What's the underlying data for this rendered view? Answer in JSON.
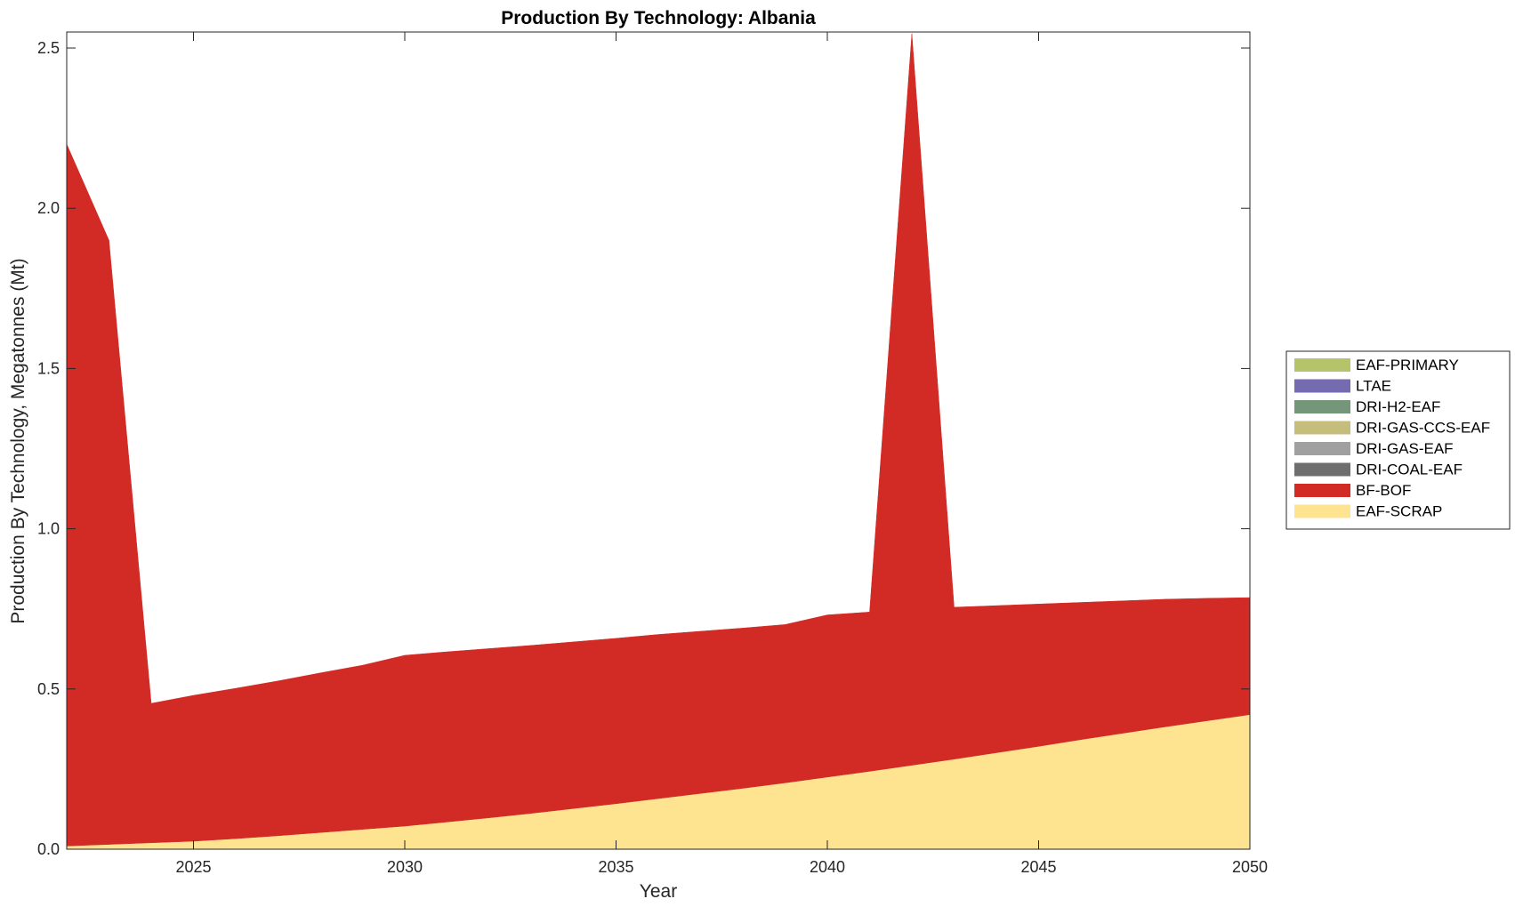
{
  "chart_data": {
    "type": "area",
    "stacked": true,
    "title": "Production By Technology: Albania",
    "xlabel": "Year",
    "ylabel": "Production By Technology, Megatonnes (Mt)",
    "xlim": [
      2022,
      2050
    ],
    "ylim": [
      0,
      2.55
    ],
    "xticks": [
      2025,
      2030,
      2035,
      2040,
      2045,
      2050
    ],
    "yticks": [
      0,
      0.5,
      1,
      1.5,
      2,
      2.5
    ],
    "ytick_labels": [
      "0.0",
      "0.5",
      "1.0",
      "1.5",
      "2.0",
      "2.5"
    ],
    "grid": false,
    "legend_position": "right",
    "x": [
      2022,
      2023,
      2024,
      2025,
      2026,
      2027,
      2028,
      2029,
      2030,
      2031,
      2032,
      2033,
      2034,
      2035,
      2036,
      2037,
      2038,
      2039,
      2040,
      2041,
      2042,
      2043,
      2044,
      2045,
      2046,
      2047,
      2048,
      2049,
      2050
    ],
    "series": [
      {
        "name": "EAF-SCRAP",
        "color": "#fee391",
        "values": [
          0.01,
          0.015,
          0.02,
          0.025,
          0.033,
          0.042,
          0.052,
          0.062,
          0.072,
          0.085,
          0.098,
          0.112,
          0.127,
          0.142,
          0.158,
          0.174,
          0.19,
          0.207,
          0.225,
          0.243,
          0.262,
          0.281,
          0.301,
          0.321,
          0.342,
          0.362,
          0.382,
          0.401,
          0.42
        ]
      },
      {
        "name": "BF-BOF",
        "color": "#d22b25",
        "values": [
          2.19,
          1.885,
          0.435,
          0.455,
          0.469,
          0.483,
          0.498,
          0.512,
          0.533,
          0.531,
          0.528,
          0.524,
          0.52,
          0.516,
          0.512,
          0.506,
          0.5,
          0.494,
          0.506,
          0.497,
          2.283,
          0.474,
          0.459,
          0.444,
          0.428,
          0.413,
          0.398,
          0.382,
          0.365
        ]
      },
      {
        "name": "DRI-COAL-EAF",
        "color": "#6e6e6e",
        "values": [
          0,
          0,
          0,
          0,
          0,
          0,
          0,
          0,
          0,
          0,
          0,
          0,
          0,
          0,
          0,
          0,
          0,
          0,
          0,
          0,
          0,
          0,
          0,
          0,
          0,
          0,
          0,
          0,
          0
        ]
      },
      {
        "name": "DRI-GAS-EAF",
        "color": "#a0a0a0",
        "values": [
          0,
          0,
          0,
          0,
          0,
          0,
          0,
          0,
          0,
          0,
          0,
          0,
          0,
          0,
          0,
          0,
          0,
          0,
          0,
          0,
          0,
          0,
          0,
          0,
          0,
          0,
          0,
          0,
          0
        ]
      },
      {
        "name": "DRI-GAS-CCS-EAF",
        "color": "#c5bd7c",
        "values": [
          0,
          0,
          0,
          0,
          0,
          0,
          0,
          0,
          0,
          0,
          0,
          0,
          0,
          0,
          0,
          0,
          0,
          0,
          0,
          0,
          0,
          0,
          0,
          0,
          0,
          0,
          0,
          0,
          0
        ]
      },
      {
        "name": "DRI-H2-EAF",
        "color": "#74977a",
        "values": [
          0,
          0,
          0,
          0,
          0,
          0,
          0,
          0,
          0,
          0,
          0,
          0,
          0,
          0,
          0,
          0,
          0,
          0,
          0,
          0,
          0,
          0,
          0,
          0,
          0,
          0,
          0,
          0,
          0
        ]
      },
      {
        "name": "LTAE",
        "color": "#756bb1",
        "values": [
          0,
          0,
          0,
          0,
          0,
          0,
          0,
          0,
          0,
          0,
          0,
          0,
          0,
          0,
          0,
          0,
          0,
          0,
          0,
          0,
          0,
          0,
          0,
          0,
          0,
          0,
          0,
          0,
          0
        ]
      },
      {
        "name": "EAF-PRIMARY",
        "color": "#b5c46a",
        "values": [
          0,
          0,
          0,
          0,
          0,
          0,
          0,
          0,
          0,
          0,
          0,
          0,
          0,
          0,
          0,
          0,
          0,
          0,
          0,
          0,
          0,
          0,
          0,
          0,
          0,
          0,
          0,
          0,
          0
        ]
      }
    ],
    "legend_order": [
      "EAF-PRIMARY",
      "LTAE",
      "DRI-H2-EAF",
      "DRI-GAS-CCS-EAF",
      "DRI-GAS-EAF",
      "DRI-COAL-EAF",
      "BF-BOF",
      "EAF-SCRAP"
    ]
  }
}
